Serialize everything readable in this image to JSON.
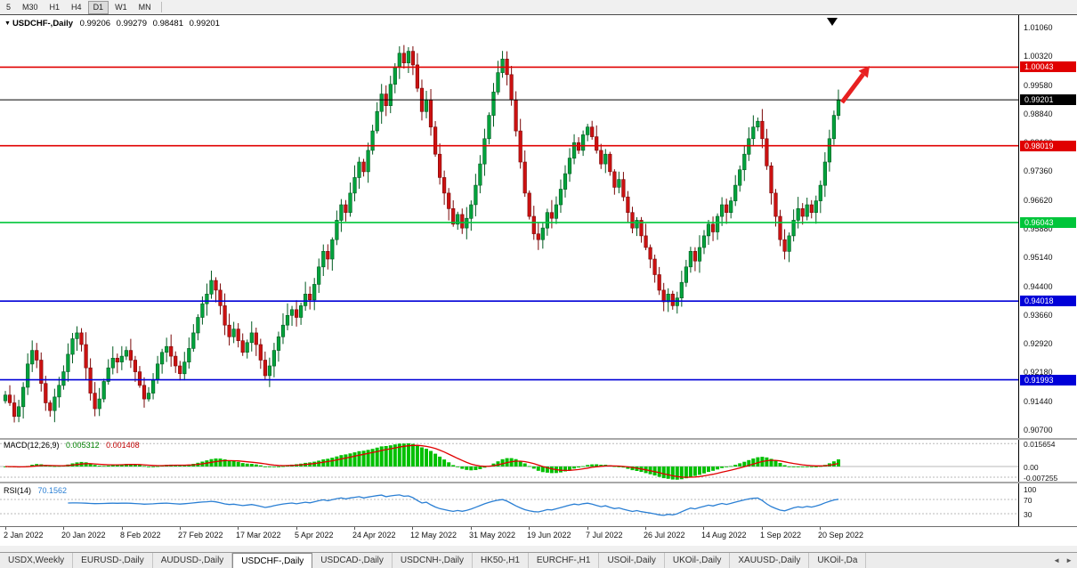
{
  "toolbar": {
    "timeframes": [
      {
        "label": "5",
        "active": false
      },
      {
        "label": "M30",
        "active": false
      },
      {
        "label": "H1",
        "active": false
      },
      {
        "label": "H4",
        "active": false
      },
      {
        "label": "D1",
        "active": true
      },
      {
        "label": "W1",
        "active": false
      },
      {
        "label": "MN",
        "active": false
      }
    ]
  },
  "chart": {
    "symbol": "USDCHF-,Daily",
    "quote": {
      "open": "0.99206",
      "high": "0.99279",
      "low": "0.98481",
      "close": "0.99201"
    },
    "axis_labels": [
      "1.01060",
      "1.00320",
      "0.99580",
      "0.98840",
      "0.98100",
      "0.97360",
      "0.96620",
      "0.95880",
      "0.95140",
      "0.94400",
      "0.93660",
      "0.92920",
      "0.92180",
      "0.91440",
      "0.90700"
    ],
    "levels": [
      {
        "label": "1.00043",
        "value": 1.00043,
        "color": "#e00000"
      },
      {
        "label": "0.99201",
        "value": 0.99201,
        "color": "#000000"
      },
      {
        "label": "0.98019",
        "value": 0.98019,
        "color": "#e00000"
      },
      {
        "label": "0.96043",
        "value": 0.96043,
        "color": "#00c53a"
      },
      {
        "label": "0.94018",
        "value": 0.94018,
        "color": "#0000d8"
      },
      {
        "label": "0.91993",
        "value": 0.91993,
        "color": "#0000d8"
      }
    ],
    "colors": {
      "bull": "#00a33c",
      "bull_border": "#005a20",
      "bear": "#cc1111",
      "bear_border": "#7a0808",
      "macd_hist": "#00c000",
      "macd_signal": "#e00000",
      "rsi_line": "#2a7fd4",
      "grid_dash": "#b8b8b8",
      "current_price_line": "#000000"
    }
  },
  "indicators": {
    "macd": {
      "label": "MACD(12,26,9)",
      "value_main": "0.005312",
      "value_signal": "0.001408",
      "axis_labels": [
        "0.015654",
        "0.00",
        "-0.007255"
      ]
    },
    "rsi": {
      "label": "RSI(14)",
      "value": "70.1562",
      "axis_labels": [
        "100",
        "70",
        "30"
      ]
    }
  },
  "date_axis": [
    "2 Jan 2022",
    "20 Jan 2022",
    "8 Feb 2022",
    "27 Feb 2022",
    "17 Mar 2022",
    "5 Apr 2022",
    "24 Apr 2022",
    "12 May 2022",
    "31 May 2022",
    "19 Jun 2022",
    "7 Jul 2022",
    "26 Jul 2022",
    "14 Aug 2022",
    "1 Sep 2022",
    "20 Sep 2022"
  ],
  "tabs": {
    "items": [
      "USDX,Weekly",
      "EURUSD-,Daily",
      "AUDUSD-,Daily",
      "USDCHF-,Daily",
      "USDCAD-,Daily",
      "USDCNH-,Daily",
      "HK50-,H1",
      "EURCHF-,H1",
      "USOil-,Daily",
      "UKOil-,Daily",
      "XAUUSD-,Daily",
      "UKOil-,Da"
    ],
    "active_index": 3,
    "nav_left": "◄",
    "nav_right": "►"
  },
  "annotations": {
    "trend_arrow_color": "#e82020",
    "top_marker_color": "#000000"
  },
  "chart_data": {
    "type": "candlestick",
    "symbol": "USDCHF",
    "timeframe": "Daily",
    "x_range": [
      "2 Jan 2022",
      "20 Sep 2022"
    ],
    "y_range": [
      0.907,
      1.0106
    ],
    "current_quote": {
      "open": 0.99206,
      "high": 0.99279,
      "low": 0.98481,
      "close": 0.99201
    },
    "horizontal_levels": [
      1.00043,
      0.99201,
      0.98019,
      0.96043,
      0.94018,
      0.91993
    ],
    "closes": [
      0.916,
      0.914,
      0.9105,
      0.913,
      0.918,
      0.924,
      0.9275,
      0.925,
      0.919,
      0.914,
      0.912,
      0.9155,
      0.9185,
      0.922,
      0.9265,
      0.9305,
      0.932,
      0.929,
      0.923,
      0.9165,
      0.9125,
      0.915,
      0.9195,
      0.923,
      0.9255,
      0.9245,
      0.926,
      0.9275,
      0.925,
      0.922,
      0.9185,
      0.915,
      0.9165,
      0.92,
      0.924,
      0.927,
      0.9285,
      0.926,
      0.9235,
      0.9215,
      0.9245,
      0.928,
      0.932,
      0.936,
      0.9395,
      0.942,
      0.9455,
      0.943,
      0.939,
      0.934,
      0.931,
      0.933,
      0.93,
      0.927,
      0.9295,
      0.932,
      0.929,
      0.925,
      0.921,
      0.9235,
      0.9275,
      0.931,
      0.934,
      0.9365,
      0.938,
      0.936,
      0.939,
      0.942,
      0.9405,
      0.9445,
      0.949,
      0.953,
      0.951,
      0.956,
      0.961,
      0.965,
      0.963,
      0.968,
      0.972,
      0.976,
      0.9735,
      0.979,
      0.984,
      0.989,
      0.9935,
      0.9905,
      0.996,
      1.0005,
      1.004,
      1.0015,
      1.0045,
      1.001,
      0.995,
      0.989,
      0.992,
      0.985,
      0.978,
      0.972,
      0.968,
      0.964,
      0.96,
      0.9625,
      0.959,
      0.9615,
      0.965,
      0.97,
      0.9755,
      0.982,
      0.988,
      0.994,
      0.999,
      1.0025,
      0.9985,
      0.992,
      0.984,
      0.976,
      0.968,
      0.962,
      0.9575,
      0.956,
      0.959,
      0.963,
      0.9615,
      0.965,
      0.969,
      0.973,
      0.977,
      0.981,
      0.979,
      0.983,
      0.985,
      0.9825,
      0.979,
      0.9755,
      0.978,
      0.9735,
      0.9695,
      0.9715,
      0.967,
      0.963,
      0.959,
      0.961,
      0.957,
      0.954,
      0.951,
      0.947,
      0.943,
      0.94,
      0.942,
      0.939,
      0.941,
      0.945,
      0.949,
      0.953,
      0.9505,
      0.954,
      0.957,
      0.96,
      0.958,
      0.962,
      0.965,
      0.963,
      0.966,
      0.97,
      0.974,
      0.978,
      0.982,
      0.985,
      0.9865,
      0.982,
      0.975,
      0.968,
      0.962,
      0.956,
      0.953,
      0.957,
      0.961,
      0.964,
      0.962,
      0.965,
      0.963,
      0.966,
      0.97,
      0.976,
      0.982,
      0.988,
      0.992
    ],
    "indicators": {
      "macd": {
        "params": [
          12,
          26,
          9
        ],
        "main": 0.005312,
        "signal": 0.001408,
        "scale_max": 0.015654,
        "scale_min": -0.007255
      },
      "rsi": {
        "period": 14,
        "value": 70.1562,
        "levels": [
          70,
          30
        ]
      }
    }
  }
}
